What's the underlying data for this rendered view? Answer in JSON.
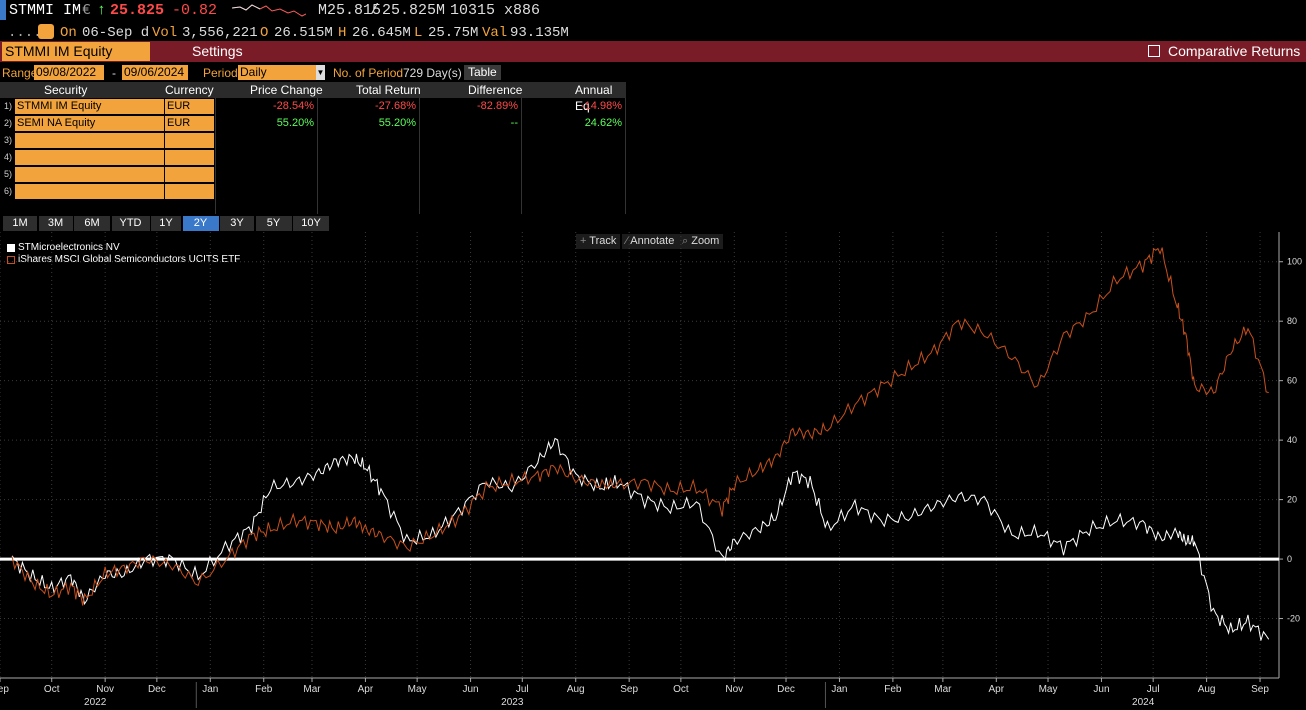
{
  "header": {
    "ticker": "STMMI IM",
    "currency_symbol": "€",
    "price": "25.825",
    "change": "-0.82",
    "bid": "M25.815",
    "ask": "25.825M",
    "size": "10315 x886",
    "on_label": "On",
    "date": "06-Sep d",
    "vol_label": "Vol",
    "vol": "3,556,221",
    "open_label": "O",
    "open": "26.515M",
    "high_label": "H",
    "high": "26.645M",
    "low_label": "L",
    "low": "25.75M",
    "val_label": "Val",
    "val": "93.135M"
  },
  "toolbar": {
    "security": "STMMI IM Equity",
    "settings": "Settings",
    "comparative": "Comparative Returns"
  },
  "range": {
    "label": "Range",
    "start": "09/08/2022",
    "sep": "-",
    "end": "09/06/2024",
    "period_label": "Period",
    "period": "Daily",
    "nop_label": "No. of Period",
    "nop": "729 Day(s)",
    "table_btn": "Table"
  },
  "table": {
    "headers": [
      "Security",
      "Currency",
      "Price Change",
      "Total Return",
      "Difference",
      "Annual Eq"
    ],
    "rows": [
      {
        "n": "1)",
        "security": "STMMI IM Equity",
        "currency": "EUR",
        "price_change": "-28.54%",
        "total_return": "-27.68%",
        "difference": "-82.89%",
        "annual_eq": "-14.98%"
      },
      {
        "n": "2)",
        "security": "SEMI NA Equity",
        "currency": "EUR",
        "price_change": "55.20%",
        "total_return": "55.20%",
        "difference": "--",
        "annual_eq": "24.62%"
      },
      {
        "n": "3)",
        "security": "",
        "currency": "",
        "price_change": "",
        "total_return": "",
        "difference": "",
        "annual_eq": ""
      },
      {
        "n": "4)",
        "security": "",
        "currency": "",
        "price_change": "",
        "total_return": "",
        "difference": "",
        "annual_eq": ""
      },
      {
        "n": "5)",
        "security": "",
        "currency": "",
        "price_change": "",
        "total_return": "",
        "difference": "",
        "annual_eq": ""
      },
      {
        "n": "6)",
        "security": "",
        "currency": "",
        "price_change": "",
        "total_return": "",
        "difference": "",
        "annual_eq": ""
      }
    ]
  },
  "periods": [
    "1M",
    "3M",
    "6M",
    "YTD",
    "1Y",
    "2Y",
    "3Y",
    "5Y",
    "10Y"
  ],
  "active_period": "2Y",
  "tools": {
    "track": "Track",
    "annotate": "Annotate",
    "zoom": "Zoom"
  },
  "colors": {
    "accent": "#f2a33c",
    "bar": "#7a1c27",
    "active": "#3a78c9",
    "series1": "#ffffff",
    "series2": "#c8501c",
    "neg": "#ff4a4a",
    "pos": "#5cff5c"
  },
  "chart_data": {
    "type": "line",
    "ylim": [
      -40,
      110
    ],
    "yticks": [
      -20,
      0,
      20,
      40,
      60,
      80,
      100
    ],
    "xlim": [
      "2022-09-01",
      "2024-09-12"
    ],
    "month_labels": [
      "Sep",
      "Oct",
      "Nov",
      "Dec",
      "Jan",
      "Feb",
      "Mar",
      "Apr",
      "May",
      "Jun",
      "Jul",
      "Aug",
      "Sep",
      "Oct",
      "Nov",
      "Dec",
      "Jan",
      "Feb",
      "Mar",
      "Apr",
      "May",
      "Jun",
      "Jul",
      "Aug",
      "Sep"
    ],
    "month_dates": [
      "2022-09-01",
      "2022-10-01",
      "2022-11-01",
      "2022-12-01",
      "2023-01-01",
      "2023-02-01",
      "2023-03-01",
      "2023-04-01",
      "2023-05-01",
      "2023-06-01",
      "2023-07-01",
      "2023-08-01",
      "2023-09-01",
      "2023-10-01",
      "2023-11-01",
      "2023-12-01",
      "2024-01-01",
      "2024-02-01",
      "2024-03-01",
      "2024-04-01",
      "2024-05-01",
      "2024-06-01",
      "2024-07-01",
      "2024-08-01",
      "2024-09-01"
    ],
    "year_labels": [
      {
        "label": "2022",
        "date": "2022-11-01"
      },
      {
        "label": "2023",
        "date": "2023-07-01"
      },
      {
        "label": "2024",
        "date": "2024-07-01"
      }
    ],
    "year_dividers": [
      "2023-01-01",
      "2024-01-01"
    ],
    "legend_position": "top-left",
    "grid": true,
    "series": [
      {
        "name": "STMicroelectronics NV",
        "x": [
          "2022-09-08",
          "2022-09-20",
          "2022-10-01",
          "2022-10-12",
          "2022-10-20",
          "2022-11-01",
          "2022-11-12",
          "2022-11-25",
          "2022-12-10",
          "2022-12-25",
          "2023-01-12",
          "2023-01-25",
          "2023-02-05",
          "2023-02-20",
          "2023-03-05",
          "2023-03-15",
          "2023-03-25",
          "2023-04-01",
          "2023-04-10",
          "2023-04-25",
          "2023-05-10",
          "2023-05-25",
          "2023-06-10",
          "2023-06-25",
          "2023-07-10",
          "2023-07-20",
          "2023-08-01",
          "2023-08-15",
          "2023-08-25",
          "2023-09-10",
          "2023-09-25",
          "2023-10-10",
          "2023-10-25",
          "2023-11-01",
          "2023-11-15",
          "2023-11-25",
          "2023-12-05",
          "2023-12-15",
          "2023-12-25",
          "2024-01-10",
          "2024-01-25",
          "2024-02-10",
          "2024-02-25",
          "2024-03-10",
          "2024-03-25",
          "2024-04-10",
          "2024-04-25",
          "2024-05-10",
          "2024-05-25",
          "2024-06-10",
          "2024-06-25",
          "2024-07-05",
          "2024-07-15",
          "2024-07-20",
          "2024-07-25",
          "2024-08-05",
          "2024-08-15",
          "2024-08-25",
          "2024-09-06"
        ],
        "y": [
          0,
          -6,
          -10,
          -6,
          -14,
          -5,
          -5,
          0,
          0,
          -6,
          5,
          11,
          24,
          26,
          29,
          33,
          34,
          31,
          23,
          6,
          8,
          16,
          26,
          24,
          33,
          40,
          28,
          24,
          26,
          20,
          17,
          19,
          0,
          6,
          10,
          14,
          29,
          26,
          10,
          18,
          13,
          14,
          18,
          21,
          20,
          8,
          9,
          4,
          10,
          13,
          12,
          7,
          9,
          6,
          6,
          -18,
          -24,
          -21,
          -27
        ]
      },
      {
        "name": "iShares MSCI Global Semiconductors UCITS ETF",
        "x": [
          "2022-09-08",
          "2022-09-20",
          "2022-10-01",
          "2022-10-12",
          "2022-10-20",
          "2022-11-01",
          "2022-11-12",
          "2022-11-25",
          "2022-12-10",
          "2022-12-25",
          "2023-01-12",
          "2023-01-25",
          "2023-02-05",
          "2023-02-20",
          "2023-03-05",
          "2023-03-15",
          "2023-03-25",
          "2023-04-01",
          "2023-04-10",
          "2023-04-25",
          "2023-05-10",
          "2023-05-25",
          "2023-06-10",
          "2023-06-25",
          "2023-07-10",
          "2023-07-20",
          "2023-08-01",
          "2023-08-15",
          "2023-08-25",
          "2023-09-10",
          "2023-09-25",
          "2023-10-10",
          "2023-10-25",
          "2023-11-01",
          "2023-11-15",
          "2023-11-25",
          "2023-12-05",
          "2023-12-15",
          "2023-12-25",
          "2024-01-10",
          "2024-01-25",
          "2024-02-10",
          "2024-02-25",
          "2024-03-10",
          "2024-03-25",
          "2024-04-10",
          "2024-04-25",
          "2024-05-10",
          "2024-05-25",
          "2024-06-10",
          "2024-06-25",
          "2024-07-05",
          "2024-07-15",
          "2024-07-20",
          "2024-07-25",
          "2024-08-05",
          "2024-08-15",
          "2024-08-25",
          "2024-09-06"
        ],
        "y": [
          0,
          -8,
          -12,
          -9,
          -14,
          -5,
          -3,
          0,
          -2,
          -8,
          1,
          8,
          10,
          13,
          12,
          10,
          13,
          10,
          8,
          4,
          8,
          14,
          24,
          26,
          28,
          31,
          27,
          25,
          25,
          26,
          23,
          24,
          17,
          25,
          30,
          34,
          43,
          42,
          44,
          52,
          58,
          64,
          70,
          80,
          76,
          68,
          58,
          75,
          82,
          94,
          99,
          105,
          85,
          75,
          58,
          56,
          70,
          78,
          56
        ]
      }
    ]
  }
}
